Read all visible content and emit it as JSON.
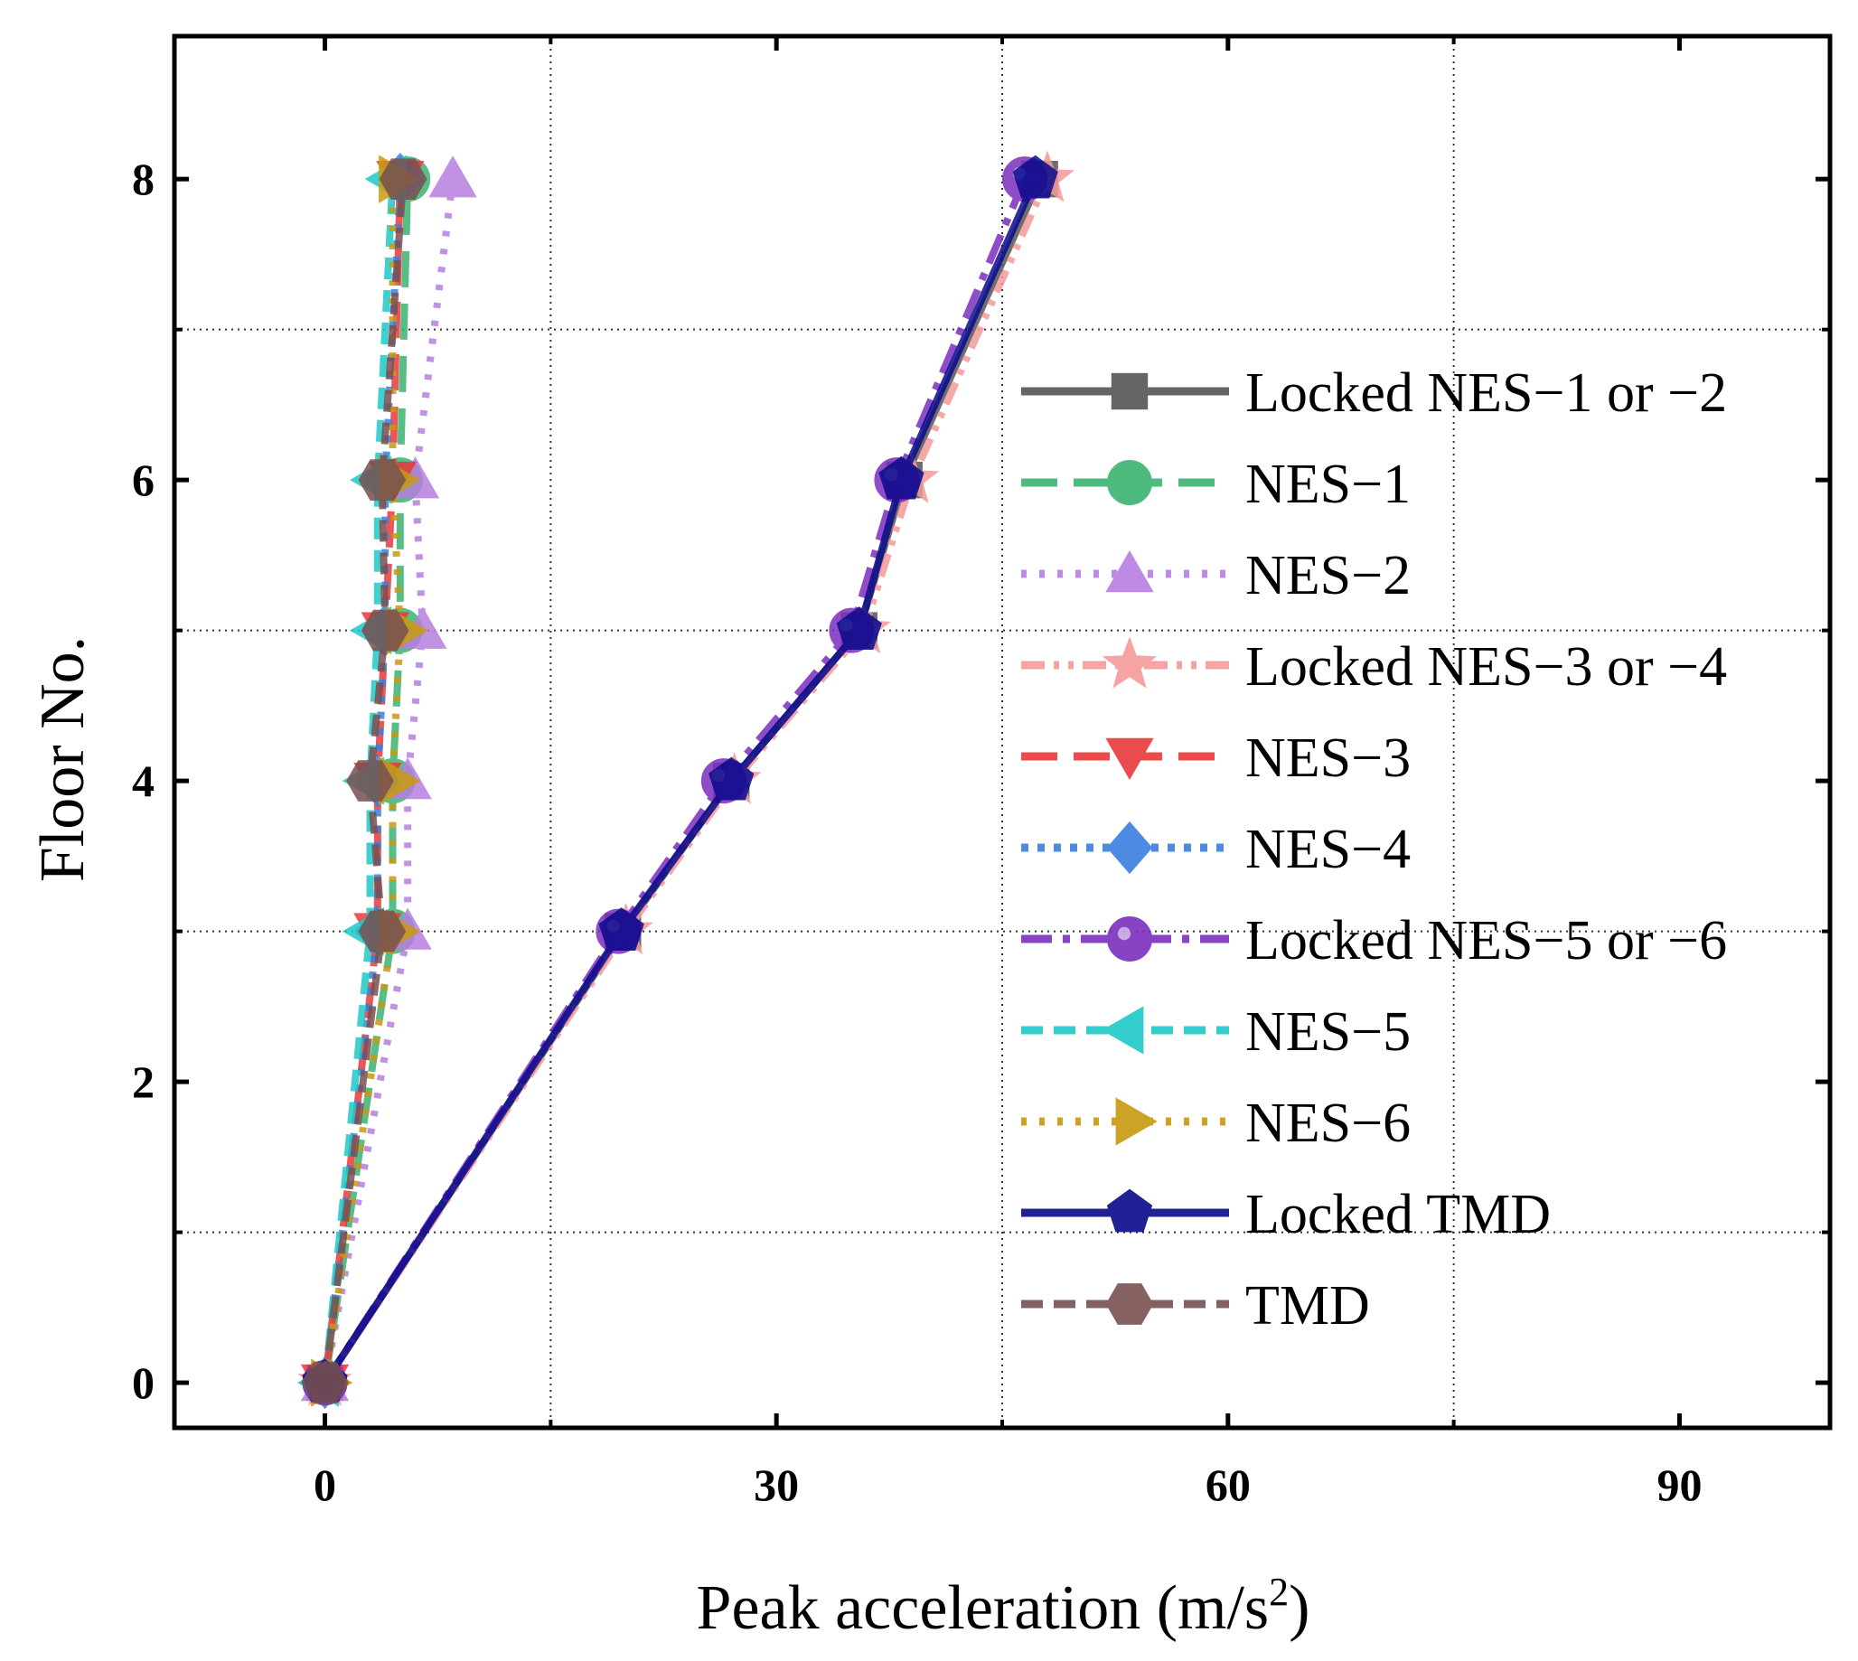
{
  "chart_data": {
    "type": "line",
    "title": "",
    "xlabel": "Peak acceleration (m/s",
    "xlabel_sup": "2",
    "xlabel_close": ")",
    "ylabel": "Floor No.",
    "xlim": [
      -10,
      100
    ],
    "ylim": [
      -0.3,
      8.95
    ],
    "xticks": [
      0,
      30,
      60,
      90
    ],
    "xtick_labels": [
      "0",
      "30",
      "60",
      "90"
    ],
    "yticks": [
      0,
      2,
      4,
      6,
      8
    ],
    "ytick_labels": [
      "0",
      "2",
      "4",
      "6",
      "8"
    ],
    "x_grid": [
      15,
      45,
      75
    ],
    "y_grid": [
      1,
      3,
      5,
      7
    ],
    "grid": true,
    "grid_style": "dotted",
    "legend_position": "right",
    "floors": [
      0,
      3,
      4,
      5,
      6,
      8
    ],
    "series": [
      {
        "name": "Locked NES−1 or −2",
        "x": [
          0,
          19.8,
          27,
          35.5,
          38.5,
          47.5
        ],
        "color": "#555555",
        "dash": "solid",
        "marker": "square"
      },
      {
        "name": "NES−1",
        "x": [
          0,
          4.5,
          4.5,
          5,
          5,
          5.5
        ],
        "color": "#3cb371",
        "dash": "long-dash",
        "marker": "circle"
      },
      {
        "name": "NES−2",
        "x": [
          0,
          5.5,
          5.5,
          6.5,
          6,
          8.5
        ],
        "color": "#b77ee0",
        "dash": "dot",
        "marker": "triangle-up"
      },
      {
        "name": "Locked NES−3 or −4",
        "x": [
          0,
          20,
          27.2,
          35.8,
          39,
          48
        ],
        "color": "#f59a9a",
        "dash": "dash-dot-dot",
        "marker": "star"
      },
      {
        "name": "NES−3",
        "x": [
          0,
          3.5,
          3.5,
          4,
          4.5,
          5
        ],
        "color": "#e8393a",
        "dash": "long-dash",
        "marker": "triangle-down"
      },
      {
        "name": "NES−4",
        "x": [
          0,
          3.5,
          3.5,
          4,
          4,
          5
        ],
        "color": "#3a7fe0",
        "dash": "short-dot",
        "marker": "diamond"
      },
      {
        "name": "Locked NES−5 or −6",
        "x": [
          0,
          19.5,
          26.5,
          35,
          38,
          46.5
        ],
        "color": "#7b2fbe",
        "dash": "dash-dot",
        "marker": "sphere"
      },
      {
        "name": "NES−5",
        "x": [
          0,
          3,
          3,
          3.5,
          3.5,
          4.5
        ],
        "color": "#1fc8c8",
        "dash": "dash",
        "marker": "triangle-left"
      },
      {
        "name": "NES−6",
        "x": [
          0,
          4.5,
          4.5,
          5,
          4.5,
          4.5
        ],
        "color": "#c89a10",
        "dash": "dot",
        "marker": "triangle-right"
      },
      {
        "name": "Locked TMD",
        "x": [
          0,
          19.7,
          27,
          35.5,
          38.3,
          47.2
        ],
        "color": "#0a0a8c",
        "dash": "solid",
        "marker": "pentagon"
      },
      {
        "name": "TMD",
        "x": [
          0,
          3.8,
          3,
          4,
          3.8,
          5.2
        ],
        "color": "#7a5050",
        "dash": "dash",
        "marker": "hexagon"
      }
    ]
  }
}
